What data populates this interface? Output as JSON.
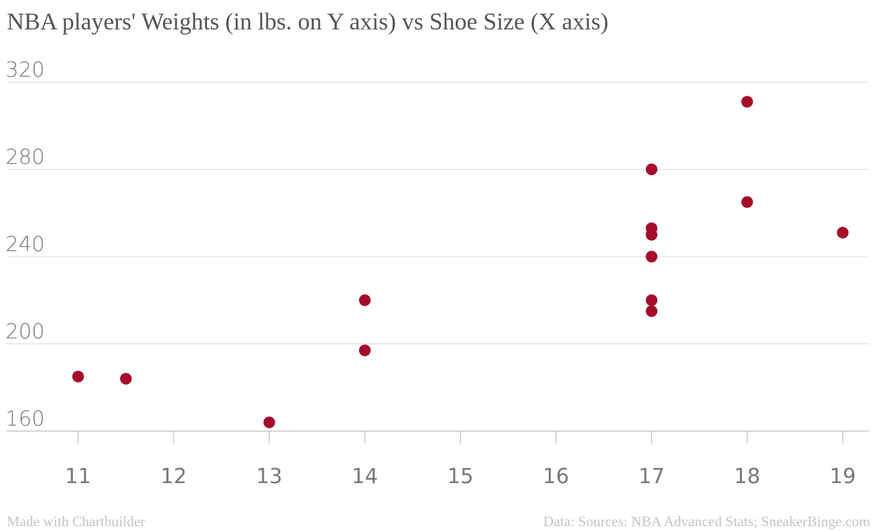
{
  "chart_data": {
    "type": "scatter",
    "title": "NBA players' Weights (in lbs. on Y axis) vs Shoe Size (X axis)",
    "xlabel": "",
    "ylabel": "",
    "xlim": [
      10.9,
      19.3
    ],
    "ylim": [
      160,
      320
    ],
    "x_ticks": [
      "11",
      "12",
      "13",
      "14",
      "15",
      "16",
      "17",
      "18",
      "19"
    ],
    "y_ticks": [
      "160",
      "200",
      "240",
      "280",
      "320"
    ],
    "grid": "horizontal",
    "point_color": "#a50b2a",
    "points": [
      {
        "x": 11,
        "y": 185
      },
      {
        "x": 11.5,
        "y": 184
      },
      {
        "x": 13,
        "y": 164
      },
      {
        "x": 14,
        "y": 220
      },
      {
        "x": 14,
        "y": 197
      },
      {
        "x": 17,
        "y": 280
      },
      {
        "x": 17,
        "y": 253
      },
      {
        "x": 17,
        "y": 250
      },
      {
        "x": 17,
        "y": 240
      },
      {
        "x": 17,
        "y": 220
      },
      {
        "x": 17,
        "y": 215
      },
      {
        "x": 18,
        "y": 311
      },
      {
        "x": 18,
        "y": 265
      },
      {
        "x": 19,
        "y": 251
      }
    ]
  },
  "footer": {
    "credit": "Made with Chartbuilder",
    "source": "Data: Sources: NBA Advanced Stats; SneakerBinge.com"
  }
}
